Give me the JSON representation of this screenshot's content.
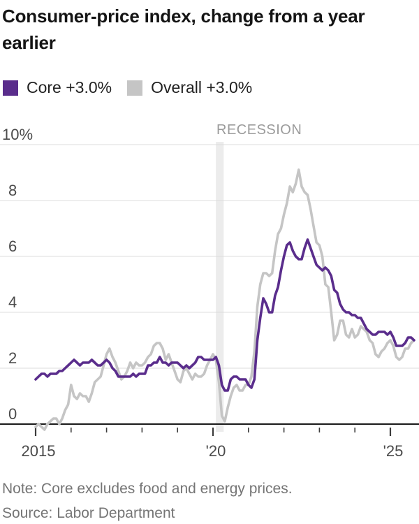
{
  "header": {
    "title": "Consumer-price index, change from a year earlier"
  },
  "legend": {
    "core_label": "Core +3.0%",
    "overall_label": "Overall +3.0%"
  },
  "footer": {
    "note": "Note: Core excludes food and energy prices.",
    "source": "Source: Labor Department"
  },
  "chart_data": {
    "type": "line",
    "title": "Consumer-price index, change from a year earlier",
    "x_monthly_start": "2015-01",
    "x_monthly_end": "2025-09",
    "ylim": [
      -0.5,
      10
    ],
    "yticks": [
      "10%",
      "8",
      "6",
      "4",
      "2",
      "0"
    ],
    "ytick_values": [
      10,
      8,
      6,
      4,
      2,
      0
    ],
    "grid": "horizontal",
    "legend_position": "top-left",
    "x_axis": {
      "labels": [
        "2015",
        "'20",
        "'25"
      ],
      "label_years": [
        2015,
        2020,
        2025
      ],
      "major_years": [
        2015,
        2020,
        2025
      ],
      "minor_tick_every_year": true
    },
    "recession": {
      "label": "RECESSION",
      "start_year": 2020.08,
      "end_year": 2020.3
    },
    "series": [
      {
        "name": "Core",
        "current_label": "Core +3.0%",
        "color": "#5a2d8c",
        "values": [
          1.6,
          1.7,
          1.8,
          1.8,
          1.7,
          1.8,
          1.8,
          1.8,
          1.9,
          1.9,
          2.0,
          2.1,
          2.2,
          2.3,
          2.2,
          2.1,
          2.2,
          2.2,
          2.2,
          2.3,
          2.2,
          2.1,
          2.1,
          2.2,
          2.3,
          2.2,
          2.0,
          1.9,
          1.7,
          1.7,
          1.7,
          1.7,
          1.7,
          1.8,
          1.7,
          1.8,
          1.8,
          1.8,
          2.1,
          2.1,
          2.2,
          2.2,
          2.4,
          2.2,
          2.2,
          2.1,
          2.2,
          2.2,
          2.2,
          2.1,
          2.0,
          2.1,
          2.0,
          2.1,
          2.2,
          2.4,
          2.4,
          2.3,
          2.3,
          2.3,
          2.3,
          2.4,
          2.1,
          1.4,
          1.2,
          1.2,
          1.6,
          1.7,
          1.7,
          1.6,
          1.6,
          1.6,
          1.4,
          1.3,
          1.6,
          3.0,
          3.8,
          4.5,
          4.3,
          4.0,
          4.0,
          4.6,
          4.9,
          5.5,
          6.0,
          6.4,
          6.5,
          6.2,
          6.0,
          5.9,
          5.9,
          6.3,
          6.6,
          6.3,
          6.0,
          5.7,
          5.6,
          5.5,
          5.6,
          5.5,
          5.3,
          4.8,
          4.7,
          4.3,
          4.1,
          4.0,
          4.0,
          3.9,
          3.9,
          3.8,
          3.8,
          3.6,
          3.4,
          3.3,
          3.2,
          3.2,
          3.3,
          3.3,
          3.3,
          3.2,
          3.3,
          3.1,
          2.8,
          2.8,
          2.8,
          2.9,
          3.1,
          3.1,
          3.0
        ]
      },
      {
        "name": "Overall",
        "current_label": "Overall +3.0%",
        "color": "#c5c5c5",
        "values": [
          -0.1,
          0.0,
          -0.1,
          -0.2,
          0.0,
          0.1,
          0.2,
          0.2,
          0.0,
          0.2,
          0.5,
          0.7,
          1.4,
          1.0,
          0.9,
          1.1,
          1.0,
          1.0,
          0.8,
          1.1,
          1.5,
          1.6,
          1.7,
          2.1,
          2.5,
          2.7,
          2.4,
          2.2,
          1.9,
          1.6,
          1.7,
          1.9,
          2.2,
          2.0,
          2.2,
          2.1,
          2.1,
          2.2,
          2.4,
          2.5,
          2.8,
          2.9,
          2.9,
          2.7,
          2.3,
          2.5,
          2.2,
          1.9,
          1.6,
          1.5,
          1.9,
          2.0,
          1.8,
          1.6,
          1.8,
          1.7,
          1.7,
          1.8,
          2.1,
          2.3,
          2.5,
          2.3,
          1.5,
          0.3,
          0.1,
          0.6,
          1.0,
          1.3,
          1.4,
          1.2,
          1.2,
          1.4,
          1.4,
          1.7,
          2.6,
          4.2,
          5.0,
          5.4,
          5.4,
          5.3,
          5.4,
          6.2,
          6.8,
          7.0,
          7.5,
          7.9,
          8.5,
          8.3,
          8.6,
          9.1,
          8.5,
          8.3,
          8.2,
          7.7,
          7.1,
          6.5,
          6.4,
          6.0,
          5.0,
          4.9,
          4.0,
          3.0,
          3.2,
          3.7,
          3.7,
          3.2,
          3.1,
          3.4,
          3.1,
          3.2,
          3.5,
          3.4,
          3.3,
          3.0,
          2.9,
          2.5,
          2.4,
          2.6,
          2.7,
          2.9,
          3.0,
          2.8,
          2.4,
          2.3,
          2.4,
          2.7,
          2.7,
          2.9,
          3.0
        ]
      }
    ]
  }
}
